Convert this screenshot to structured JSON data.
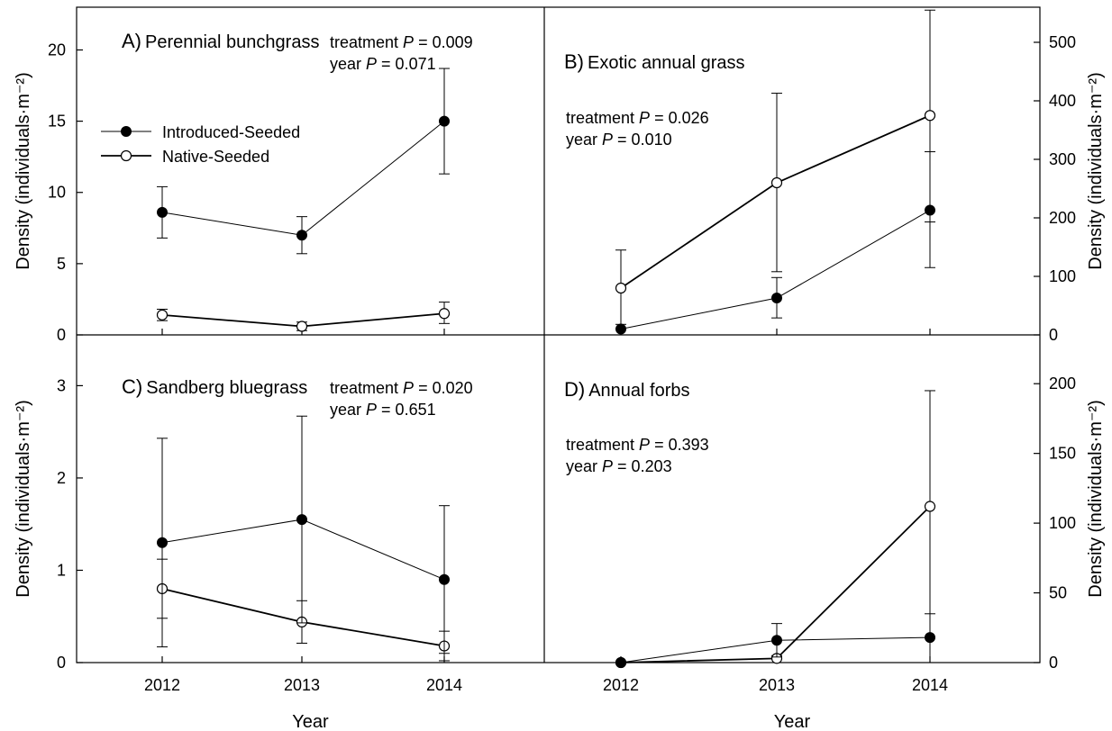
{
  "chart_data": [
    {
      "panel": "A",
      "type": "line",
      "letter": "A)",
      "title": "Perennial bunchgrass",
      "x": [
        2012,
        2013,
        2014
      ],
      "ylim": [
        0,
        23
      ],
      "yticks": [
        0,
        5,
        10,
        15,
        20
      ],
      "yaxis_side": "left",
      "ylabel": "Density (individuals·m⁻²)",
      "annotations": [
        {
          "label": "treatment",
          "p": "P",
          "value": "= 0.009"
        },
        {
          "label": "year",
          "p": "P",
          "value": "= 0.071"
        }
      ],
      "series": [
        {
          "name": "Introduced-Seeded",
          "marker": "filled",
          "values": [
            8.6,
            7.0,
            15.0
          ],
          "err_low": [
            6.8,
            5.7,
            11.3
          ],
          "err_high": [
            10.4,
            8.3,
            18.7
          ]
        },
        {
          "name": "Native-Seeded",
          "marker": "open",
          "values": [
            1.4,
            0.6,
            1.5
          ],
          "err_low": [
            1.0,
            0.3,
            0.8
          ],
          "err_high": [
            1.8,
            0.9,
            2.3
          ]
        }
      ]
    },
    {
      "panel": "B",
      "type": "line",
      "letter": "B)",
      "title": "Exotic annual grass",
      "x": [
        2012,
        2013,
        2014
      ],
      "ylim": [
        0,
        560
      ],
      "yticks": [
        0,
        100,
        200,
        300,
        400,
        500
      ],
      "yaxis_side": "right",
      "ylabel": "Density (individuals·m⁻²)",
      "annotations": [
        {
          "label": "treatment",
          "p": "P",
          "value": "= 0.026"
        },
        {
          "label": "year",
          "p": "P",
          "value": "= 0.010"
        }
      ],
      "series": [
        {
          "name": "Introduced-Seeded",
          "marker": "filled",
          "values": [
            10,
            63,
            213
          ],
          "err_low": [
            0,
            29,
            115
          ],
          "err_high": [
            18,
            98,
            313
          ]
        },
        {
          "name": "Native-Seeded",
          "marker": "open",
          "values": [
            80,
            260,
            375
          ],
          "err_low": [
            0,
            108,
            193
          ],
          "err_high": [
            145,
            413,
            555
          ]
        }
      ]
    },
    {
      "panel": "C",
      "type": "line",
      "letter": "C)",
      "title": "Sandberg bluegrass",
      "x": [
        2012,
        2013,
        2014
      ],
      "ylim": [
        0,
        3.55
      ],
      "yticks": [
        0,
        1,
        2,
        3
      ],
      "yaxis_side": "left",
      "ylabel": "Density (individuals·m⁻²)",
      "xlabel": "Year",
      "annotations": [
        {
          "label": "treatment",
          "p": "P",
          "value": "= 0.020"
        },
        {
          "label": "year",
          "p": "P",
          "value": "= 0.651"
        }
      ],
      "series": [
        {
          "name": "Introduced-Seeded",
          "marker": "filled",
          "values": [
            1.3,
            1.55,
            0.9
          ],
          "err_low": [
            0.17,
            0.43,
            0.1
          ],
          "err_high": [
            2.43,
            2.67,
            1.7
          ]
        },
        {
          "name": "Native-Seeded",
          "marker": "open",
          "values": [
            0.8,
            0.44,
            0.18
          ],
          "err_low": [
            0.48,
            0.21,
            0.02
          ],
          "err_high": [
            1.12,
            0.67,
            0.34
          ]
        }
      ]
    },
    {
      "panel": "D",
      "type": "line",
      "letter": "D)",
      "title": "Annual forbs",
      "x": [
        2012,
        2013,
        2014
      ],
      "ylim": [
        0,
        235
      ],
      "yticks": [
        0,
        50,
        100,
        150,
        200
      ],
      "yaxis_side": "right",
      "ylabel": "Density (individuals·m⁻²)",
      "xlabel": "Year",
      "annotations": [
        {
          "label": "treatment",
          "p": "P",
          "value": "= 0.393"
        },
        {
          "label": "year",
          "p": "P",
          "value": "= 0.203"
        }
      ],
      "series": [
        {
          "name": "Introduced-Seeded",
          "marker": "filled",
          "values": [
            0,
            16,
            18
          ],
          "err_low": [
            0,
            4,
            0
          ],
          "err_high": [
            0,
            28,
            35
          ]
        },
        {
          "name": "Native-Seeded",
          "marker": "open",
          "values": [
            0,
            3,
            112
          ],
          "err_low": [
            0,
            0,
            0
          ],
          "err_high": [
            0,
            5,
            195
          ]
        }
      ]
    }
  ],
  "legend": {
    "entries": [
      {
        "name": "Introduced-Seeded",
        "marker": "filled"
      },
      {
        "name": "Native-Seeded",
        "marker": "open"
      }
    ],
    "placement": "panel A, upper left"
  }
}
